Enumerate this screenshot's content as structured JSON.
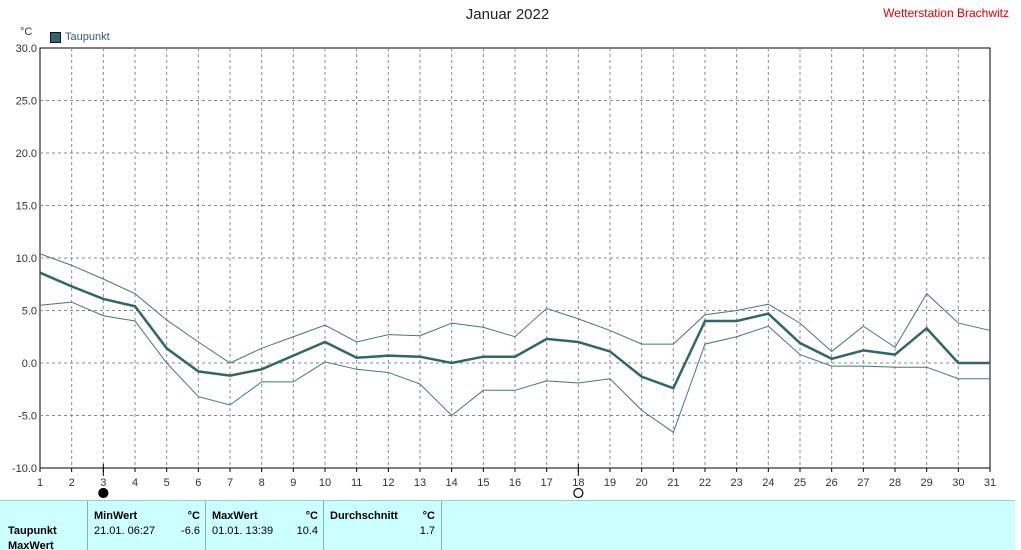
{
  "title": "Januar 2022",
  "station": "Wetterstation Brachwitz",
  "unit": "°C",
  "legend": {
    "label": "Taupunkt",
    "color": "#336666"
  },
  "chart_data": {
    "type": "line",
    "title": "Januar 2022",
    "ylabel": "°C",
    "xlabel": "",
    "xlim": [
      1,
      31
    ],
    "ylim": [
      -10,
      30
    ],
    "yticks": [
      "30.0",
      "25.0",
      "20.0",
      "15.0",
      "10.0",
      "5.0",
      "0.0",
      "-5.0",
      "-10.0"
    ],
    "x": [
      1,
      2,
      3,
      4,
      5,
      6,
      7,
      8,
      9,
      10,
      11,
      12,
      13,
      14,
      15,
      16,
      17,
      18,
      19,
      20,
      21,
      22,
      23,
      24,
      25,
      26,
      27,
      28,
      29,
      30,
      31
    ],
    "grid": true,
    "legend_position": "top-left",
    "series": [
      {
        "name": "Taupunkt",
        "role": "mean",
        "color": "#336666",
        "values": [
          8.6,
          7.3,
          6.1,
          5.4,
          1.4,
          -0.8,
          -1.2,
          -0.6,
          0.7,
          2.0,
          0.5,
          0.7,
          0.6,
          0.0,
          0.6,
          0.6,
          2.3,
          2.0,
          1.1,
          -1.3,
          -2.4,
          4.0,
          4.0,
          4.7,
          1.9,
          0.4,
          1.2,
          0.8,
          3.3,
          0.0,
          0.0
        ]
      },
      {
        "role": "max",
        "color": "#447777",
        "values": [
          10.4,
          9.3,
          8.0,
          6.6,
          4.1,
          2.0,
          0.0,
          1.4,
          2.5,
          3.6,
          2.0,
          2.7,
          2.6,
          3.8,
          3.4,
          2.5,
          5.2,
          4.2,
          3.1,
          1.8,
          1.8,
          4.6,
          5.0,
          5.6,
          3.8,
          1.1,
          3.5,
          1.5,
          6.6,
          3.8,
          3.1
        ]
      },
      {
        "role": "min",
        "color": "#447777",
        "values": [
          5.5,
          5.8,
          4.5,
          4.0,
          0.0,
          -3.2,
          -4.0,
          -1.8,
          -1.8,
          0.1,
          -0.6,
          -0.9,
          -2.0,
          -5.0,
          -2.6,
          -2.6,
          -1.7,
          -1.9,
          -1.5,
          -4.5,
          -6.6,
          1.8,
          2.5,
          3.5,
          0.8,
          -0.3,
          -0.3,
          -0.4,
          -0.4,
          -1.5,
          -1.5
        ]
      }
    ],
    "markers": [
      {
        "x": 3,
        "symbol": "filled-circle"
      },
      {
        "x": 18,
        "symbol": "open-circle"
      }
    ]
  },
  "stats": {
    "row_labels": [
      "Taupunkt",
      "MaxWert"
    ],
    "min": {
      "header": "MinWert",
      "unit": "°C",
      "datetime": "21.01.  06:27",
      "value": "-6.6"
    },
    "max": {
      "header": "MaxWert",
      "unit": "°C",
      "datetime": "01.01.  13:39",
      "value": "10.4"
    },
    "avg": {
      "header": "Durchschnitt",
      "unit": "°C",
      "value": "1.7"
    }
  }
}
